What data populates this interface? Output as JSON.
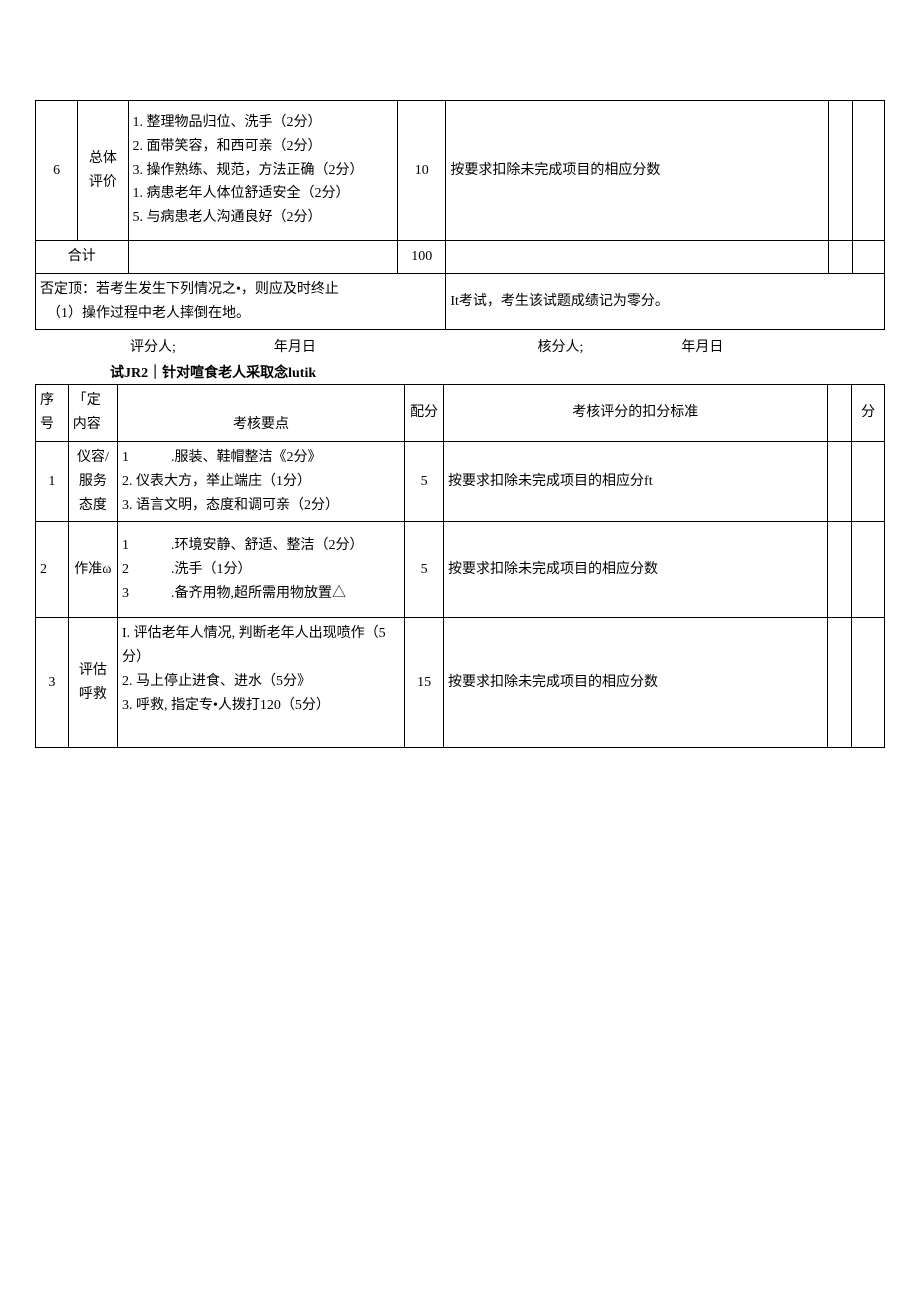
{
  "table1": {
    "row6": {
      "num": "6",
      "label": "总体评价",
      "points": "1. 整理物品归位、洗手（2分）\n2. 面带笑容，和西可亲（2分）\n3. 操作熟练、规范，方法正确（2分）\n1. 病患老年人体位舒适安全（2分）\n5. 与病患老人沟通良好（2分）",
      "score": "10",
      "criteria": "按要求扣除未完成项目的相应分数"
    },
    "total_label": "合计",
    "total_score": "100",
    "negative_left": "否定顶：若考生发生下列情况之•，则应及时终止\n　（1）操作过程中老人摔倒在地。",
    "negative_right": "It考试，考生该试题成绩记为零分。"
  },
  "sig": {
    "left": "评分人;　　　　　　　年月日",
    "right": "核分人;　　　　　　　年月日"
  },
  "subtitle": "试JR2｜针对喧食老人采取念lutik",
  "table2": {
    "header": {
      "c1": "序号",
      "c2": "「定内容",
      "c3": "考核要点",
      "c4": "配分",
      "c5": "考核评分的扣分标准",
      "c7": "分"
    },
    "rows": [
      {
        "num": "1",
        "label": "仪容/服务态度",
        "points": "1　　　.服装、鞋帽整洁《2分》\n2. 仪表大方，举止端庄（1分）\n3. 语言文明，态度和调可亲（2分）",
        "score": "5",
        "criteria": "按要求扣除未完成项目的相应分ft"
      },
      {
        "num": "2",
        "label": "作准ω",
        "points": "1　　　.环境安静、舒适、整洁（2分）\n2　　　.洗手（1分）\n3　　　.备齐用物,超所需用物放置△",
        "score": "5",
        "criteria": "按要求扣除未完成项目的相应分数"
      },
      {
        "num": "3",
        "label": "评估呼救",
        "points": "I. 评估老年人情况, 判断老年人出现喷作（5分）\n2. 马上停止进食、进水（5分》\n3. 呼救, 指定专•人拨打120（5分）",
        "score": "15",
        "criteria": "按要求扣除未完成项目的相应分数"
      }
    ]
  }
}
